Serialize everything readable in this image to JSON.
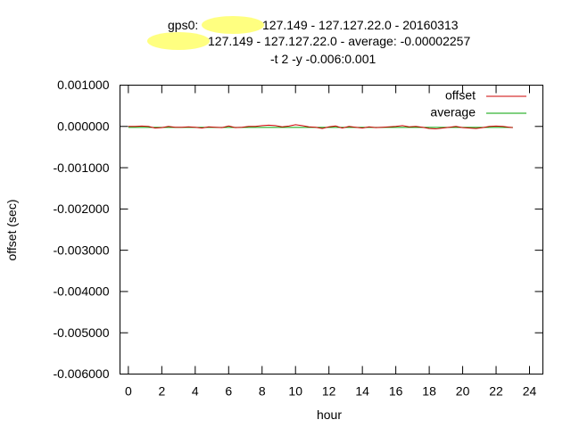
{
  "chart_data": {
    "type": "line",
    "title_lines": [
      {
        "prefix": "gps0:",
        "text": "127.149 - 127.127.22.0 - 20160313"
      },
      {
        "prefix": "",
        "text": "127.149 - 127.127.22.0 - average: -0.00002257"
      },
      {
        "prefix": "",
        "text": "-t 2 -y -0.006:0.001"
      }
    ],
    "xlabel": "hour",
    "ylabel": "offset (sec)",
    "xlim": [
      -0.5,
      24.8
    ],
    "ylim": [
      -0.006,
      0.001
    ],
    "x_ticks": [
      0,
      2,
      4,
      6,
      8,
      10,
      12,
      14,
      16,
      18,
      20,
      22,
      24
    ],
    "y_ticks": [
      0.001,
      0.0,
      -0.001,
      -0.002,
      -0.003,
      -0.004,
      -0.005,
      -0.006
    ],
    "x_tick_labels": [
      "0",
      "2",
      "4",
      "6",
      "8",
      "10",
      "12",
      "14",
      "16",
      "18",
      "20",
      "22",
      "24"
    ],
    "y_tick_labels": [
      "0.001000",
      "0.000000",
      "-0.001000",
      "-0.002000",
      "-0.003000",
      "-0.004000",
      "-0.005000",
      "-0.006000"
    ],
    "legend_position": "top-right",
    "redaction_color": "#ffff80",
    "series": [
      {
        "name": "offset",
        "color": "#cc0000",
        "x": [
          0.0,
          0.4,
          0.8,
          1.2,
          1.6,
          2.0,
          2.4,
          2.8,
          3.2,
          3.6,
          4.0,
          4.4,
          4.8,
          5.2,
          5.6,
          6.0,
          6.4,
          6.8,
          7.2,
          7.6,
          8.0,
          8.4,
          8.8,
          9.2,
          9.6,
          10.0,
          10.4,
          10.8,
          11.2,
          11.6,
          12.0,
          12.4,
          12.8,
          13.2,
          13.6,
          14.0,
          14.4,
          14.8,
          15.2,
          15.6,
          16.0,
          16.4,
          16.8,
          17.2,
          17.6,
          18.0,
          18.4,
          18.8,
          19.2,
          19.6,
          20.0,
          20.4,
          20.8,
          21.2,
          21.6,
          22.0,
          22.4,
          22.8,
          23.0
        ],
        "y": [
          0.0,
          0.0,
          1e-05,
          0.0,
          -4e-05,
          -3e-05,
          0.0,
          -2e-05,
          -2e-05,
          -1e-05,
          -2e-05,
          -4e-05,
          -1e-05,
          -2e-05,
          -3e-05,
          1e-05,
          -3e-05,
          -2e-05,
          0.0,
          0.0,
          2e-05,
          3e-05,
          2e-05,
          -1e-05,
          1e-05,
          4e-05,
          2e-05,
          -1e-05,
          -2e-05,
          -5e-05,
          -1e-05,
          1e-05,
          -4e-05,
          0.0,
          -2e-05,
          -4e-05,
          -1e-05,
          -3e-05,
          -2e-05,
          -1e-05,
          0.0,
          2e-05,
          -1e-05,
          0.0,
          -2e-05,
          -5e-05,
          -6e-05,
          -4e-05,
          -2e-05,
          0.0,
          -3e-05,
          -4e-05,
          -5e-05,
          -3e-05,
          0.0,
          1e-05,
          0.0,
          -2e-05,
          -3e-05
        ]
      },
      {
        "name": "average",
        "color": "#00a000",
        "x": [
          0.0,
          23.0
        ],
        "y": [
          -2.257e-05,
          -2.257e-05
        ]
      }
    ]
  }
}
